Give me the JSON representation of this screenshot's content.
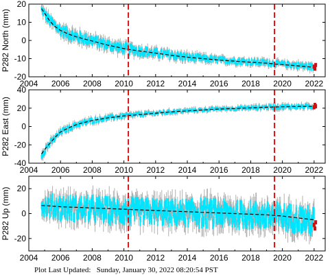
{
  "footer": {
    "prefix": "Plot Last Updated:",
    "timestamp": "Sunday, January 30, 2022 08:20:54 PST"
  },
  "colors": {
    "observed": "#00e5ff",
    "error_bar": "#b0b0b0",
    "model": "#000000",
    "event_line": "#e01010",
    "recent": "#d01010"
  },
  "chart_data": [
    {
      "type": "scatter",
      "ylabel": "P282 North (mm)",
      "xlim": [
        2004,
        2022.7
      ],
      "ylim": [
        -20,
        20
      ],
      "x_ticks": [
        2004,
        2006,
        2008,
        2010,
        2012,
        2014,
        2016,
        2018,
        2020,
        2022
      ],
      "y_ticks": [
        -20,
        -10,
        0,
        10,
        20
      ],
      "event_lines": [
        2010.28,
        2019.5
      ],
      "grid": false,
      "series": [
        {
          "role": "model-trend",
          "x": [
            2004.8,
            2005.0,
            2005.3,
            2005.6,
            2006.0,
            2006.5,
            2007.0,
            2007.5,
            2008.0,
            2008.5,
            2009.0,
            2009.5,
            2010.0,
            2010.5,
            2011.0,
            2012.0,
            2013.0,
            2014.0,
            2015.0,
            2016.0,
            2017.0,
            2018.0,
            2019.0,
            2019.6,
            2020.0,
            2021.0,
            2022.0
          ],
          "y": [
            17.5,
            15.0,
            11.0,
            8.0,
            5.5,
            3.5,
            2.0,
            0.8,
            -0.3,
            -1.5,
            -2.6,
            -3.5,
            -4.5,
            -5.2,
            -5.8,
            -7.0,
            -8.2,
            -9.2,
            -10.0,
            -10.8,
            -11.4,
            -12.0,
            -12.5,
            -13.0,
            -13.3,
            -14.0,
            -14.8
          ]
        },
        {
          "role": "observed-envelope",
          "x": [
            2004.8,
            2005.3,
            2006.0,
            2007.0,
            2008.0,
            2009.0,
            2010.0,
            2011.0,
            2012.0,
            2013.0,
            2014.0,
            2015.0,
            2016.0,
            2017.0,
            2018.0,
            2019.0,
            2020.0,
            2021.0,
            2022.0
          ],
          "y_low": [
            14.0,
            7.5,
            2.0,
            -2.0,
            -3.5,
            -6.0,
            -8.0,
            -9.0,
            -10.0,
            -11.0,
            -12.0,
            -12.5,
            -13.0,
            -13.5,
            -14.0,
            -14.5,
            -15.0,
            -16.0,
            -17.0
          ],
          "y_high": [
            20.0,
            14.5,
            9.0,
            6.0,
            3.5,
            1.0,
            -1.0,
            -2.5,
            -4.0,
            -5.0,
            -6.5,
            -7.5,
            -8.5,
            -9.0,
            -9.5,
            -10.0,
            -11.0,
            -11.5,
            -12.5
          ]
        }
      ],
      "recent_points": {
        "x": [
          2022.0,
          2022.05,
          2022.1
        ],
        "y": [
          -14.5,
          -15.5,
          -13.5
        ]
      }
    },
    {
      "type": "scatter",
      "ylabel": "P282 East (mm)",
      "xlim": [
        2004,
        2022.7
      ],
      "ylim": [
        -40,
        40
      ],
      "x_ticks": [
        2004,
        2006,
        2008,
        2010,
        2012,
        2014,
        2016,
        2018,
        2020,
        2022
      ],
      "y_ticks": [
        -40,
        -20,
        0,
        20,
        40
      ],
      "event_lines": [
        2010.28,
        2019.5
      ],
      "grid": false,
      "series": [
        {
          "role": "model-trend",
          "x": [
            2004.8,
            2005.0,
            2005.3,
            2005.7,
            2006.0,
            2006.5,
            2007.0,
            2007.5,
            2008.0,
            2008.5,
            2009.0,
            2009.5,
            2010.0,
            2011.0,
            2012.0,
            2013.0,
            2014.0,
            2015.0,
            2016.0,
            2017.0,
            2018.0,
            2019.0,
            2019.6,
            2020.0,
            2021.0,
            2022.0
          ],
          "y": [
            -30.0,
            -25.0,
            -19.0,
            -11.0,
            -6.0,
            -1.5,
            2.0,
            4.5,
            6.5,
            8.0,
            9.5,
            10.5,
            11.5,
            13.0,
            14.5,
            16.0,
            17.0,
            18.0,
            19.0,
            19.7,
            20.3,
            21.0,
            21.3,
            21.5,
            21.8,
            22.0
          ]
        },
        {
          "role": "observed-envelope",
          "x": [
            2004.8,
            2005.3,
            2006.0,
            2007.0,
            2008.0,
            2009.0,
            2010.0,
            2011.0,
            2012.0,
            2013.0,
            2014.0,
            2015.0,
            2016.0,
            2017.0,
            2018.0,
            2019.0,
            2020.0,
            2021.0,
            2022.0
          ],
          "y_low": [
            -36.0,
            -24.0,
            -10.0,
            -2.0,
            2.5,
            6.0,
            8.0,
            10.0,
            11.5,
            13.0,
            14.5,
            15.5,
            16.5,
            17.0,
            17.5,
            18.0,
            18.0,
            18.5,
            18.5
          ],
          "y_high": [
            -24.0,
            -14.0,
            -2.0,
            6.0,
            10.5,
            13.0,
            15.0,
            16.5,
            17.5,
            19.0,
            20.0,
            21.0,
            22.0,
            22.5,
            23.5,
            24.5,
            25.0,
            25.0,
            25.5
          ]
        }
      ],
      "recent_points": {
        "x": [
          2022.0,
          2022.05,
          2022.1
        ],
        "y": [
          21.0,
          23.5,
          22.0
        ]
      }
    },
    {
      "type": "scatter",
      "ylabel": "P282 Up (mm)",
      "xlim": [
        2004,
        2022.7
      ],
      "ylim": [
        -30,
        30
      ],
      "x_ticks": [
        2004,
        2006,
        2008,
        2010,
        2012,
        2014,
        2016,
        2018,
        2020,
        2022
      ],
      "y_ticks": [
        -20,
        0,
        20
      ],
      "event_lines": [
        2010.28,
        2019.5
      ],
      "grid": false,
      "series": [
        {
          "role": "model-trend",
          "x": [
            2004.8,
            2005.5,
            2006.0,
            2007.0,
            2008.0,
            2009.0,
            2010.0,
            2011.0,
            2012.0,
            2013.0,
            2014.0,
            2015.0,
            2016.0,
            2017.0,
            2018.0,
            2019.0,
            2020.0,
            2021.0,
            2022.0
          ],
          "y": [
            6.5,
            6.0,
            5.5,
            5.0,
            4.5,
            4.0,
            3.5,
            3.0,
            2.5,
            2.0,
            1.5,
            1.0,
            0.5,
            0.0,
            -0.5,
            -1.0,
            -2.0,
            -3.5,
            -5.0
          ]
        },
        {
          "role": "observed-envelope",
          "x": [
            2004.8,
            2005.3,
            2006.0,
            2007.0,
            2008.0,
            2009.0,
            2010.0,
            2011.0,
            2012.0,
            2013.0,
            2014.0,
            2015.0,
            2016.0,
            2017.0,
            2018.0,
            2019.0,
            2020.0,
            2021.0,
            2022.0
          ],
          "y_low": [
            -2.0,
            -4.0,
            -6.0,
            -7.0,
            -8.0,
            -9.0,
            -10.0,
            -10.0,
            -10.0,
            -11.0,
            -11.0,
            -12.0,
            -12.0,
            -13.0,
            -13.0,
            -14.0,
            -15.0,
            -16.0,
            -20.0
          ],
          "y_high": [
            14.0,
            16.0,
            16.0,
            15.0,
            15.0,
            14.0,
            14.0,
            13.0,
            13.0,
            12.0,
            12.0,
            13.0,
            12.0,
            11.0,
            11.0,
            10.0,
            9.0,
            8.0,
            6.0
          ]
        }
      ],
      "recent_points": {
        "x": [
          2022.0,
          2022.05,
          2022.1
        ],
        "y": [
          -9.0,
          -12.0,
          -7.0
        ]
      }
    }
  ]
}
